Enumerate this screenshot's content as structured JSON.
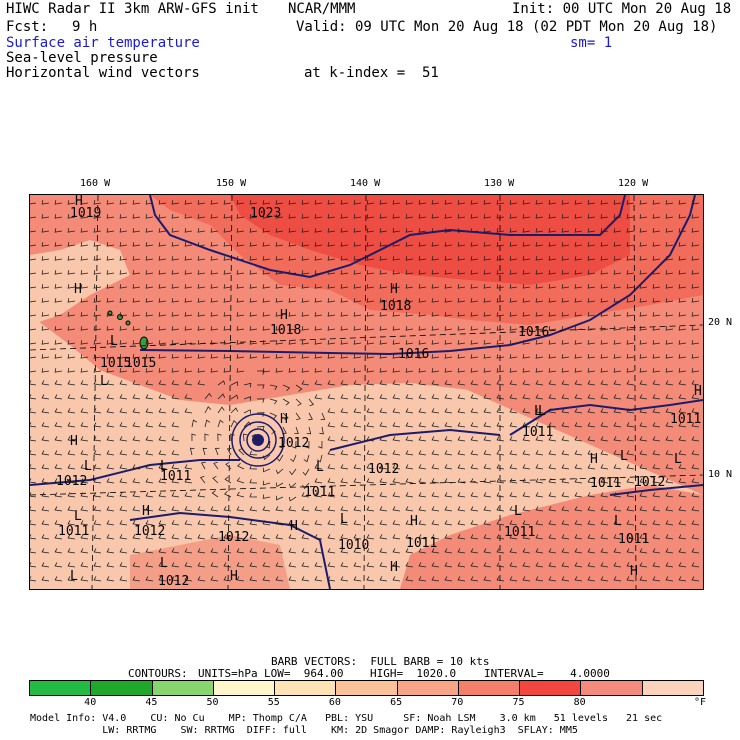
{
  "header": {
    "title": "HIWC Radar II 3km ARW-GFS init",
    "org": "NCAR/MMM",
    "init": "Init: 00 UTC Mon 20 Aug 18",
    "fcst_label": "Fcst:",
    "fcst_value": "9 h",
    "valid": "Valid: 09 UTC Mon 20 Aug 18 (02 PDT Mon 20 Aug 18)",
    "field1": "Surface air temperature",
    "sm": "sm= 1",
    "field2": "Sea-level pressure",
    "field3": "Horizontal wind vectors",
    "kindex": "at k-index =  51"
  },
  "map": {
    "lon_labels": [
      "160 W",
      "150 W",
      "140 W",
      "130 W",
      "120 W"
    ],
    "lat_labels": [
      "20 N",
      "10 N"
    ],
    "contour_labels": [
      "1019",
      "1023",
      "1018",
      "1015",
      "1018",
      "1016",
      "1016",
      "1015",
      "1012",
      "1011",
      "1012",
      "1012",
      "1011",
      "1011",
      "1011",
      "1011",
      "1012",
      "1012",
      "1010",
      "1011",
      "1011",
      "1011",
      "1012",
      "1011",
      "1012"
    ],
    "pressure_centers": [
      "H",
      "H",
      "L",
      "L",
      "H",
      "H",
      "L",
      "L",
      "L",
      "H",
      "L",
      "L",
      "L",
      "H",
      "L",
      "H",
      "L",
      "L",
      "H",
      "H",
      "L",
      "H",
      "H",
      "L",
      "L",
      "L",
      "H",
      "H",
      "H"
    ],
    "colors": {
      "bg_50_55": "#f9c8ac",
      "band_65_70": "#f48b78",
      "band_70_75": "#f26c5c",
      "band_75_80": "#ee4d43",
      "isobar": "#1c1c6e",
      "barb": "#222222",
      "land": "#3c9c3c"
    }
  },
  "legend": {
    "barb_text": "BARB VECTORS:  FULL BARB = 10 kts",
    "contours_label": "CONTOURS:",
    "units": "UNITS=hPa",
    "low": "LOW=  964.00",
    "high": "HIGH=  1020.0",
    "interval": "INTERVAL=    4.0000",
    "colorbar_colors": [
      "#22bb44",
      "#1fa829",
      "#86d66d",
      "#fff6cc",
      "#fde3b5",
      "#fbc29a",
      "#f7a586",
      "#f4806b",
      "#f2463e",
      "#f48b7c",
      "#fbd3bd"
    ],
    "tick_labels": [
      "40",
      "45",
      "50",
      "55",
      "60",
      "65",
      "70",
      "75",
      "80"
    ],
    "units_label": "°F"
  },
  "footer": {
    "line1": "Model Info: V4.0    CU: No Cu    MP: Thomp C/A   PBL: YSU     SF: Noah LSM    3.0 km   51 levels   21 sec",
    "line2": "            LW: RRTMG    SW: RRTMG  DIFF: full    KM: 2D Smagor DAMP: Rayleigh3  SFLAY: MM5"
  }
}
